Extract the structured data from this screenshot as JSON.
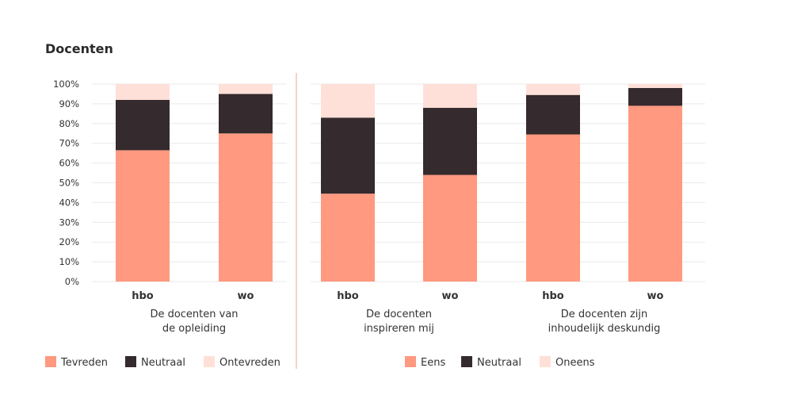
{
  "title": "Docenten",
  "colors": {
    "positive": "#ff9980",
    "neutral": "#352a2d",
    "negative": "#ffe0d8",
    "grid": "#e9e9e9",
    "divider": "#f0a488"
  },
  "y_ticks": [
    "0%",
    "10%",
    "20%",
    "30%",
    "40%",
    "50%",
    "60%",
    "70%",
    "80%",
    "90%",
    "100%"
  ],
  "legends": {
    "left": [
      "Tevreden",
      "Neutraal",
      "Ontevreden"
    ],
    "right": [
      "Eens",
      "Neutraal",
      "Oneens"
    ]
  },
  "chart_data": {
    "type": "bar",
    "stacked": true,
    "ylim": [
      0,
      100
    ],
    "ylabel": "",
    "xlabel": "",
    "legend_position": "bottom",
    "grid": true,
    "groups": [
      {
        "label_lines": [
          "De docenten van",
          "de opleiding"
        ],
        "categories": [
          "hbo",
          "wo"
        ],
        "series": [
          {
            "name": "Tevreden",
            "values": [
              66.5,
              75
            ]
          },
          {
            "name": "Neutraal",
            "values": [
              25.5,
              20
            ]
          },
          {
            "name": "Ontevreden",
            "values": [
              8,
              5
            ]
          }
        ]
      },
      {
        "label_lines": [
          "De docenten",
          "inspireren mij"
        ],
        "categories": [
          "hbo",
          "wo"
        ],
        "series": [
          {
            "name": "Eens",
            "values": [
              44.5,
              54
            ]
          },
          {
            "name": "Neutraal",
            "values": [
              38.5,
              34
            ]
          },
          {
            "name": "Oneens",
            "values": [
              17,
              12
            ]
          }
        ]
      },
      {
        "label_lines": [
          "De docenten zijn",
          "inhoudelijk deskundig"
        ],
        "categories": [
          "hbo",
          "wo"
        ],
        "series": [
          {
            "name": "Eens",
            "values": [
              74.5,
              89
            ]
          },
          {
            "name": "Neutraal",
            "values": [
              20,
              9
            ]
          },
          {
            "name": "Oneens",
            "values": [
              5.5,
              2
            ]
          }
        ]
      }
    ]
  }
}
